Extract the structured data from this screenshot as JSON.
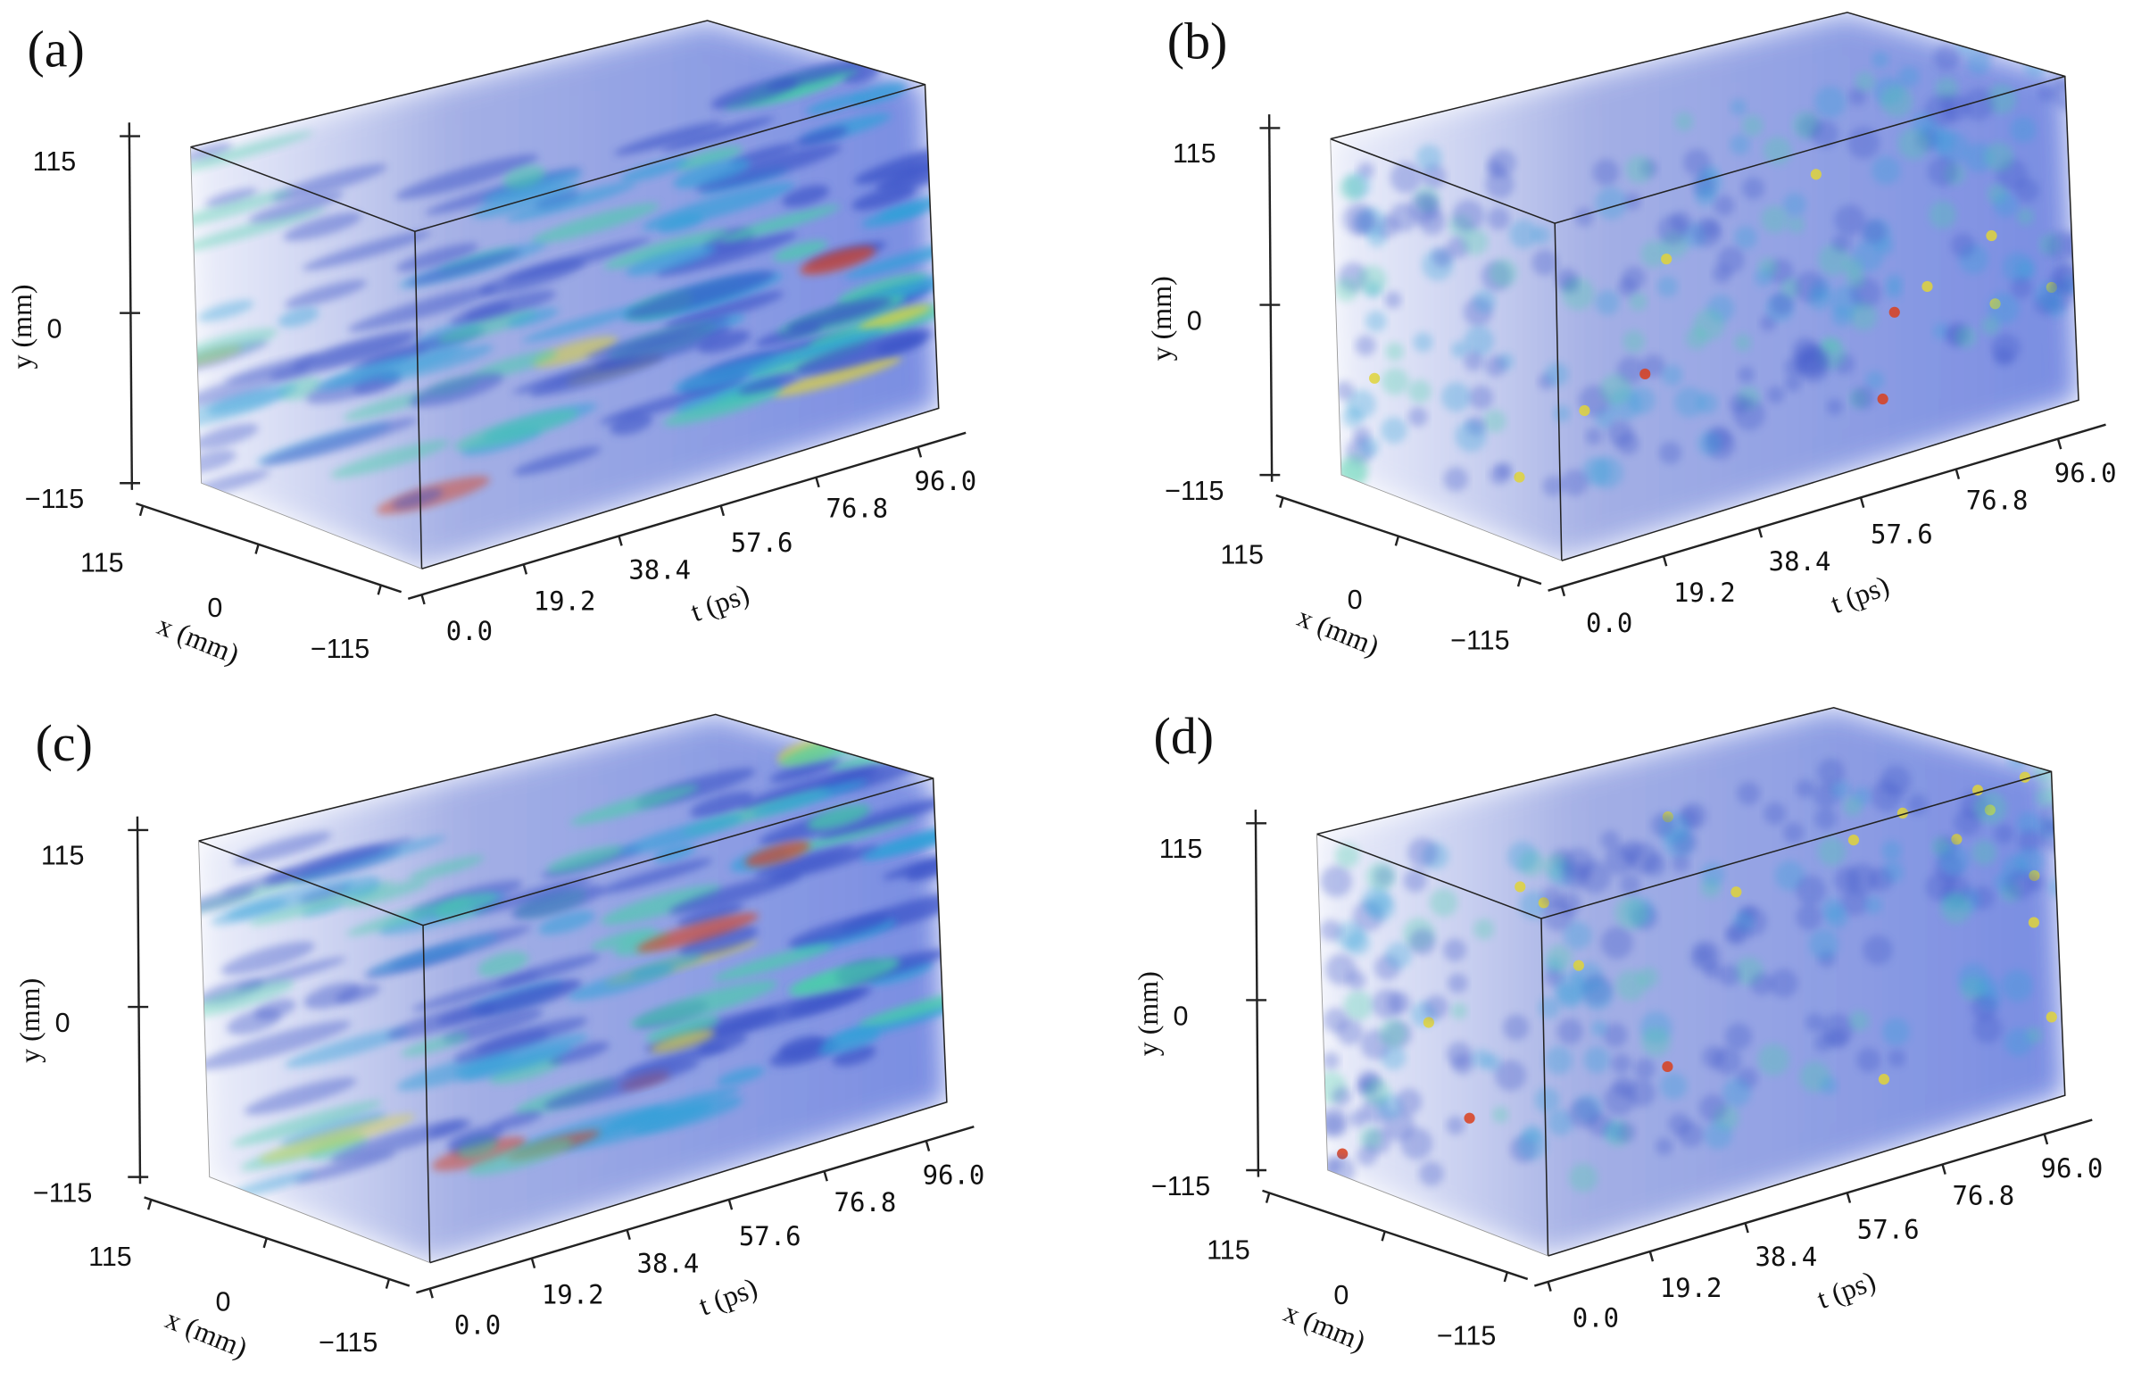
{
  "panels": [
    {
      "label": "(a)",
      "y_label": "y (mm)",
      "x_label": "x (mm)",
      "t_label": "t (ps)",
      "y_ticks": [
        "115",
        "0",
        "−115"
      ],
      "x_ticks": [
        "115",
        "0",
        "−115"
      ],
      "t_ticks": [
        "0.0",
        "19.2",
        "38.4",
        "57.6",
        "76.8",
        "96.0"
      ]
    },
    {
      "label": "(b)",
      "y_label": "y (mm)",
      "x_label": "x (mm)",
      "t_label": "t (ps)",
      "y_ticks": [
        "115",
        "0",
        "−115"
      ],
      "x_ticks": [
        "115",
        "0",
        "−115"
      ],
      "t_ticks": [
        "0.0",
        "19.2",
        "38.4",
        "57.6",
        "76.8",
        "96.0"
      ]
    },
    {
      "label": "(c)",
      "y_label": "y (mm)",
      "x_label": "x (mm)",
      "t_label": "t (ps)",
      "y_ticks": [
        "115",
        "0",
        "−115"
      ],
      "x_ticks": [
        "115",
        "0",
        "−115"
      ],
      "t_ticks": [
        "0.0",
        "19.2",
        "38.4",
        "57.6",
        "76.8",
        "96.0"
      ]
    },
    {
      "label": "(d)",
      "y_label": "y (mm)",
      "x_label": "x (mm)",
      "t_label": "t (ps)",
      "y_ticks": [
        "115",
        "0",
        "−115"
      ],
      "x_ticks": [
        "115",
        "0",
        "−115"
      ],
      "t_ticks": [
        "0.0",
        "19.2",
        "38.4",
        "57.6",
        "76.8",
        "96.0"
      ]
    }
  ]
}
